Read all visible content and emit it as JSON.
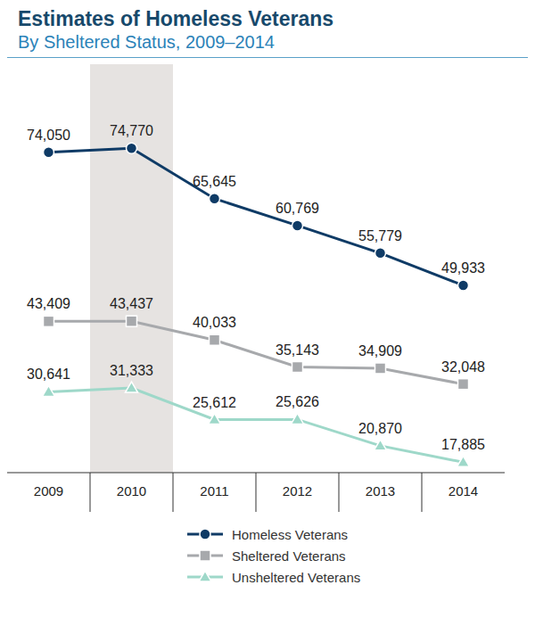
{
  "chart_data": {
    "type": "line",
    "title": "Estimates of Homeless Veterans",
    "subtitle": "By Sheltered Status, 2009–2014",
    "categories": [
      "2009",
      "2010",
      "2011",
      "2012",
      "2013",
      "2014"
    ],
    "highlight": "2010",
    "series": [
      {
        "name": "Homeless Veterans",
        "color": "#0f3b66",
        "marker": "circle",
        "values": [
          74050,
          74770,
          65645,
          60769,
          55779,
          49933
        ],
        "value_labels": [
          "74,050",
          "74,770",
          "65,645",
          "60,769",
          "55,779",
          "49,933"
        ]
      },
      {
        "name": "Sheltered Veterans",
        "color": "#a7a9ac",
        "marker": "square",
        "values": [
          43409,
          43437,
          40033,
          35143,
          34909,
          32048
        ],
        "value_labels": [
          "43,409",
          "43,437",
          "40,033",
          "35,143",
          "34,909",
          "32,048"
        ]
      },
      {
        "name": "Unsheltered Veterans",
        "color": "#9ed8c9",
        "marker": "triangle",
        "values": [
          30641,
          31333,
          25612,
          25626,
          20870,
          17885
        ],
        "value_labels": [
          "30,641",
          "31,333",
          "25,612",
          "25,626",
          "20,870",
          "17,885"
        ]
      }
    ],
    "ylim": [
      16000,
      90000
    ],
    "data_labels": true,
    "tick_labels": "x",
    "legend": "bottom"
  }
}
